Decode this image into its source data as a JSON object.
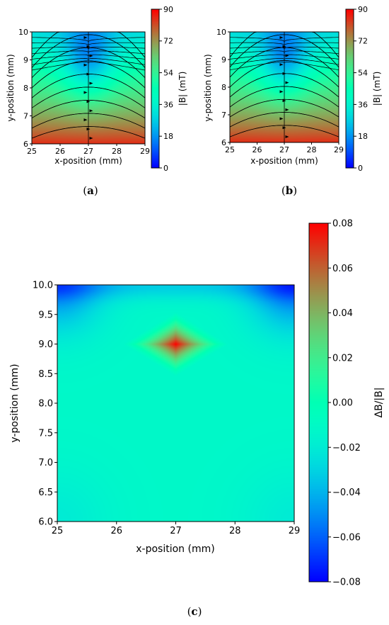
{
  "captions": [
    "a",
    "b",
    "c"
  ],
  "chart_data": [
    {
      "id": "a",
      "type": "heatmap",
      "subtype": "contour with streamlines",
      "xlabel": "x-position (mm)",
      "ylabel": "y-position (mm)",
      "xlim": [
        25,
        29
      ],
      "ylim": [
        6,
        10
      ],
      "xticks": [
        "25",
        "26",
        "27",
        "28",
        "29"
      ],
      "yticks": [
        "6",
        "7",
        "8",
        "9",
        "10"
      ],
      "colorbar": {
        "label": "|B| (mT)",
        "range": [
          0,
          90
        ],
        "ticks": [
          "0",
          "18",
          "36",
          "54",
          "72",
          "90"
        ],
        "colormap": "rainbow"
      },
      "field": {
        "bottom_value": 85,
        "top_value": 30,
        "minimum_value": 15,
        "minimum_location": [
          27,
          9.5
        ]
      }
    },
    {
      "id": "b",
      "type": "heatmap",
      "subtype": "contour with streamlines",
      "xlabel": "x-position (mm)",
      "ylabel": "y-position (mm)",
      "xlim": [
        25,
        29
      ],
      "ylim": [
        6,
        10
      ],
      "xticks": [
        "25",
        "26",
        "27",
        "28",
        "29"
      ],
      "yticks": [
        "6",
        "7",
        "8",
        "9",
        "10"
      ],
      "colorbar": {
        "label": "|B| (mT)",
        "range": [
          0,
          90
        ],
        "ticks": [
          "0",
          "18",
          "36",
          "54",
          "72",
          "90"
        ],
        "colormap": "rainbow"
      },
      "field": {
        "bottom_value": 85,
        "top_value": 30,
        "minimum_value": 15,
        "minimum_location": [
          27,
          9.5
        ]
      }
    },
    {
      "id": "c",
      "type": "heatmap",
      "subtype": "contour",
      "xlabel": "x-position (mm)",
      "ylabel": "y-position (mm)",
      "xlim": [
        25,
        29
      ],
      "ylim": [
        6,
        10
      ],
      "xticks": [
        "25",
        "26",
        "27",
        "28",
        "29"
      ],
      "yticks": [
        "6.0",
        "6.5",
        "7.0",
        "7.5",
        "8.0",
        "8.5",
        "9.0",
        "9.5",
        "10.0"
      ],
      "colorbar": {
        "label": "ΔB/|B|",
        "range": [
          -0.08,
          0.08
        ],
        "ticks": [
          "−0.08",
          "−0.06",
          "−0.04",
          "−0.02",
          "0.00",
          "0.02",
          "0.04",
          "0.06",
          "0.08"
        ],
        "colormap": "rainbow"
      },
      "field": {
        "background_value": -0.012,
        "peak_value": 0.08,
        "peak_location": [
          27,
          9.0
        ],
        "corner_values": {
          "top_left": -0.05,
          "top_right": -0.055,
          "bottom_left": -0.02,
          "bottom_right": -0.02
        }
      }
    }
  ]
}
